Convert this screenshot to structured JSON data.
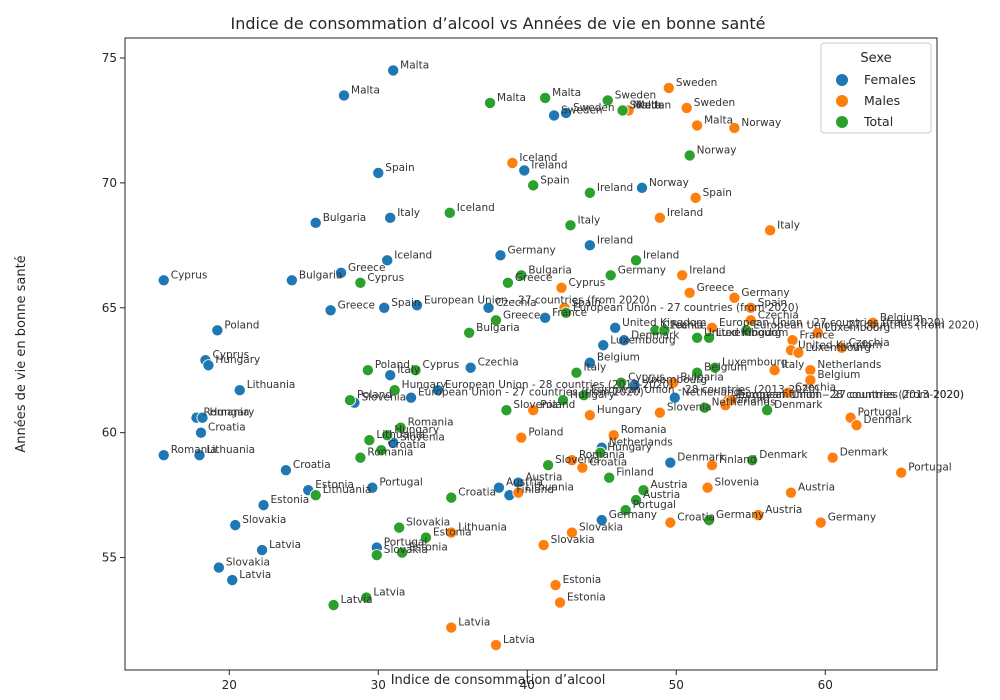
{
  "chart_data": {
    "type": "scatter",
    "title": "Indice de consommation d’alcool vs Années de vie en bonne santé",
    "xlabel": "Indice de consommation d’alcool",
    "ylabel": "Années de vie en bonne santé",
    "xlim": [
      13,
      67.5
    ],
    "ylim": [
      50.5,
      75.8
    ],
    "xticks": [
      20,
      30,
      40,
      50,
      60
    ],
    "yticks": [
      55,
      60,
      65,
      70,
      75
    ],
    "grid": false,
    "legend": {
      "title": "Sexe",
      "position": "top-right"
    },
    "series": [
      {
        "name": "Females",
        "color": "#1f77b4",
        "points": [
          {
            "x": 31.0,
            "y": 74.5,
            "label": "Malta"
          },
          {
            "x": 27.7,
            "y": 73.5,
            "label": "Malta"
          },
          {
            "x": 41.8,
            "y": 72.7,
            "label": "Sweden"
          },
          {
            "x": 42.6,
            "y": 72.8,
            "label": "Sweden"
          },
          {
            "x": 46.6,
            "y": 72.9,
            "label": "Malta"
          },
          {
            "x": 30.0,
            "y": 70.4,
            "label": "Spain"
          },
          {
            "x": 39.8,
            "y": 70.5,
            "label": "Ireland"
          },
          {
            "x": 47.7,
            "y": 69.8,
            "label": "Norway"
          },
          {
            "x": 25.8,
            "y": 68.4,
            "label": "Bulgaria"
          },
          {
            "x": 30.8,
            "y": 68.6,
            "label": "Italy"
          },
          {
            "x": 44.2,
            "y": 67.5,
            "label": "Ireland"
          },
          {
            "x": 38.2,
            "y": 67.1,
            "label": "Germany"
          },
          {
            "x": 30.6,
            "y": 66.9,
            "label": "Iceland"
          },
          {
            "x": 27.5,
            "y": 66.4,
            "label": "Greece"
          },
          {
            "x": 15.6,
            "y": 66.1,
            "label": "Cyprus"
          },
          {
            "x": 24.2,
            "y": 66.1,
            "label": "Bulgaria"
          },
          {
            "x": 26.8,
            "y": 64.9,
            "label": "Greece"
          },
          {
            "x": 30.4,
            "y": 65.0,
            "label": "Spain"
          },
          {
            "x": 32.6,
            "y": 65.1,
            "label": "European Union - 27 countries (from 2020)"
          },
          {
            "x": 37.4,
            "y": 65.0,
            "label": "Czechia"
          },
          {
            "x": 41.2,
            "y": 64.6,
            "label": "France"
          },
          {
            "x": 45.9,
            "y": 64.2,
            "label": "United Kingdom"
          },
          {
            "x": 19.2,
            "y": 64.1,
            "label": "Poland"
          },
          {
            "x": 45.1,
            "y": 63.5,
            "label": "Luxembourg"
          },
          {
            "x": 46.5,
            "y": 63.7,
            "label": "Denmark"
          },
          {
            "x": 18.4,
            "y": 62.9,
            "label": "Cyprus"
          },
          {
            "x": 18.6,
            "y": 62.7,
            "label": "Hungary"
          },
          {
            "x": 44.2,
            "y": 62.8,
            "label": "Belgium"
          },
          {
            "x": 36.2,
            "y": 62.6,
            "label": "Czechia"
          },
          {
            "x": 30.8,
            "y": 62.3,
            "label": "Italy"
          },
          {
            "x": 47.2,
            "y": 61.9,
            "label": "Luxembourg"
          },
          {
            "x": 20.7,
            "y": 61.7,
            "label": "Lithuania"
          },
          {
            "x": 34.0,
            "y": 61.7,
            "label": "European Union - 28 countries (2013-2020)"
          },
          {
            "x": 32.2,
            "y": 61.4,
            "label": "European Union - 27 countries (from 2020)"
          },
          {
            "x": 49.9,
            "y": 61.4,
            "label": "Netherlands"
          },
          {
            "x": 28.4,
            "y": 61.2,
            "label": "Slovenia"
          },
          {
            "x": 17.8,
            "y": 60.6,
            "label": "Romania"
          },
          {
            "x": 18.2,
            "y": 60.6,
            "label": "Hungary"
          },
          {
            "x": 18.1,
            "y": 60.0,
            "label": "Croatia"
          },
          {
            "x": 31.0,
            "y": 59.6,
            "label": "Slovenia"
          },
          {
            "x": 15.6,
            "y": 59.1,
            "label": "Romania"
          },
          {
            "x": 18.0,
            "y": 59.1,
            "label": "Lithuania"
          },
          {
            "x": 45.0,
            "y": 59.4,
            "label": "Netherlands"
          },
          {
            "x": 49.6,
            "y": 58.8,
            "label": "Denmark"
          },
          {
            "x": 23.8,
            "y": 58.5,
            "label": "Croatia"
          },
          {
            "x": 39.4,
            "y": 58.0,
            "label": "Austria"
          },
          {
            "x": 29.6,
            "y": 57.8,
            "label": "Portugal"
          },
          {
            "x": 38.1,
            "y": 57.8,
            "label": "Austria"
          },
          {
            "x": 38.8,
            "y": 57.5,
            "label": "Finland"
          },
          {
            "x": 25.3,
            "y": 57.7,
            "label": "Estonia"
          },
          {
            "x": 22.3,
            "y": 57.1,
            "label": "Estonia"
          },
          {
            "x": 45.0,
            "y": 56.5,
            "label": "Germany"
          },
          {
            "x": 20.4,
            "y": 56.3,
            "label": "Slovakia"
          },
          {
            "x": 29.9,
            "y": 55.4,
            "label": "Portugal"
          },
          {
            "x": 22.2,
            "y": 55.3,
            "label": "Latvia"
          },
          {
            "x": 19.3,
            "y": 54.6,
            "label": "Slovakia"
          },
          {
            "x": 20.2,
            "y": 54.1,
            "label": "Latvia"
          }
        ]
      },
      {
        "name": "Males",
        "color": "#ff7f0e",
        "points": [
          {
            "x": 49.5,
            "y": 73.8,
            "label": "Sweden"
          },
          {
            "x": 50.7,
            "y": 73.0,
            "label": "Sweden"
          },
          {
            "x": 46.8,
            "y": 72.9,
            "label": "Malta"
          },
          {
            "x": 51.4,
            "y": 72.3,
            "label": "Malta"
          },
          {
            "x": 53.9,
            "y": 72.2,
            "label": "Norway"
          },
          {
            "x": 39.0,
            "y": 70.8,
            "label": "Iceland"
          },
          {
            "x": 51.3,
            "y": 69.4,
            "label": "Spain"
          },
          {
            "x": 48.9,
            "y": 68.6,
            "label": "Ireland"
          },
          {
            "x": 56.3,
            "y": 68.1,
            "label": "Italy"
          },
          {
            "x": 50.4,
            "y": 66.3,
            "label": "Ireland"
          },
          {
            "x": 42.3,
            "y": 65.8,
            "label": "Cyprus"
          },
          {
            "x": 50.9,
            "y": 65.6,
            "label": "Greece"
          },
          {
            "x": 53.9,
            "y": 65.4,
            "label": "Germany"
          },
          {
            "x": 55.0,
            "y": 65.0,
            "label": "Spain"
          },
          {
            "x": 42.5,
            "y": 65.0,
            "label": "Spain"
          },
          {
            "x": 55.0,
            "y": 64.5,
            "label": "Czechia"
          },
          {
            "x": 52.4,
            "y": 64.2,
            "label": "European Union - 27 countries (from 2020)"
          },
          {
            "x": 63.2,
            "y": 64.4,
            "label": "Belgium"
          },
          {
            "x": 59.5,
            "y": 64.0,
            "label": "Luxembourg"
          },
          {
            "x": 57.8,
            "y": 63.7,
            "label": "France"
          },
          {
            "x": 57.7,
            "y": 63.3,
            "label": "United Kingdom"
          },
          {
            "x": 58.2,
            "y": 63.2,
            "label": "Luxembourg"
          },
          {
            "x": 61.1,
            "y": 63.4,
            "label": "Czechia"
          },
          {
            "x": 56.6,
            "y": 62.5,
            "label": "Italy"
          },
          {
            "x": 59.0,
            "y": 62.5,
            "label": "Netherlands"
          },
          {
            "x": 59.0,
            "y": 62.1,
            "label": "Belgium"
          },
          {
            "x": 49.8,
            "y": 62.0,
            "label": "Bulgaria"
          },
          {
            "x": 57.5,
            "y": 61.6,
            "label": "Czechia"
          },
          {
            "x": 53.5,
            "y": 61.3,
            "label": "European Union - 28 countries (2013-2020)"
          },
          {
            "x": 53.3,
            "y": 61.1,
            "label": "Finland"
          },
          {
            "x": 53.7,
            "y": 61.3,
            "label": "European Union - 27 countries (from 2020)"
          },
          {
            "x": 48.9,
            "y": 60.8,
            "label": "Slovenia"
          },
          {
            "x": 61.7,
            "y": 60.6,
            "label": "Portugal"
          },
          {
            "x": 62.1,
            "y": 60.3,
            "label": "Denmark"
          },
          {
            "x": 40.4,
            "y": 60.9,
            "label": "Poland"
          },
          {
            "x": 44.2,
            "y": 60.7,
            "label": "Hungary"
          },
          {
            "x": 39.6,
            "y": 59.8,
            "label": "Poland"
          },
          {
            "x": 45.8,
            "y": 59.9,
            "label": "Romania"
          },
          {
            "x": 43.0,
            "y": 58.9,
            "label": "Romania"
          },
          {
            "x": 43.7,
            "y": 58.6,
            "label": "Croatia"
          },
          {
            "x": 60.5,
            "y": 59.0,
            "label": "Denmark"
          },
          {
            "x": 52.4,
            "y": 58.7,
            "label": "Finland"
          },
          {
            "x": 65.1,
            "y": 58.4,
            "label": "Portugal"
          },
          {
            "x": 52.1,
            "y": 57.8,
            "label": "Slovenia"
          },
          {
            "x": 57.7,
            "y": 57.6,
            "label": "Austria"
          },
          {
            "x": 39.4,
            "y": 57.6,
            "label": "Lithuania"
          },
          {
            "x": 55.5,
            "y": 56.7,
            "label": "Austria"
          },
          {
            "x": 49.6,
            "y": 56.4,
            "label": "Croatia"
          },
          {
            "x": 59.7,
            "y": 56.4,
            "label": "Germany"
          },
          {
            "x": 34.9,
            "y": 56.0,
            "label": "Lithuania"
          },
          {
            "x": 43.0,
            "y": 56.0,
            "label": "Slovakia"
          },
          {
            "x": 41.1,
            "y": 55.5,
            "label": "Slovakia"
          },
          {
            "x": 41.9,
            "y": 53.9,
            "label": "Estonia"
          },
          {
            "x": 42.2,
            "y": 53.2,
            "label": "Estonia"
          },
          {
            "x": 34.9,
            "y": 52.2,
            "label": "Latvia"
          },
          {
            "x": 37.9,
            "y": 51.5,
            "label": "Latvia"
          }
        ]
      },
      {
        "name": "Total",
        "color": "#2ca02c",
        "points": [
          {
            "x": 41.2,
            "y": 73.4,
            "label": "Malta"
          },
          {
            "x": 37.5,
            "y": 73.2,
            "label": "Malta"
          },
          {
            "x": 45.4,
            "y": 73.3,
            "label": "Sweden"
          },
          {
            "x": 46.4,
            "y": 72.9,
            "label": "Sweden"
          },
          {
            "x": 50.9,
            "y": 71.1,
            "label": "Norway"
          },
          {
            "x": 40.4,
            "y": 69.9,
            "label": "Spain"
          },
          {
            "x": 44.2,
            "y": 69.6,
            "label": "Ireland"
          },
          {
            "x": 34.8,
            "y": 68.8,
            "label": "Iceland"
          },
          {
            "x": 42.9,
            "y": 68.3,
            "label": "Italy"
          },
          {
            "x": 47.3,
            "y": 66.9,
            "label": "Ireland"
          },
          {
            "x": 45.6,
            "y": 66.3,
            "label": "Germany"
          },
          {
            "x": 39.6,
            "y": 66.3,
            "label": "Bulgaria"
          },
          {
            "x": 38.7,
            "y": 66.0,
            "label": "Greece"
          },
          {
            "x": 28.8,
            "y": 66.0,
            "label": "Cyprus"
          },
          {
            "x": 42.6,
            "y": 64.8,
            "label": "European Union - 27 countries (from 2020)"
          },
          {
            "x": 37.9,
            "y": 64.5,
            "label": "Greece"
          },
          {
            "x": 36.1,
            "y": 64.0,
            "label": "Bulgaria"
          },
          {
            "x": 48.6,
            "y": 64.1,
            "label": "Czechia"
          },
          {
            "x": 49.2,
            "y": 64.1,
            "label": "France"
          },
          {
            "x": 51.4,
            "y": 63.8,
            "label": "United Kingdom"
          },
          {
            "x": 52.2,
            "y": 63.8,
            "label": "Luxembourg"
          },
          {
            "x": 54.7,
            "y": 64.1,
            "label": "European Union - 27 countries (from 2020)"
          },
          {
            "x": 29.3,
            "y": 62.5,
            "label": "Poland"
          },
          {
            "x": 32.5,
            "y": 62.5,
            "label": "Cyprus"
          },
          {
            "x": 43.3,
            "y": 62.4,
            "label": "Italy"
          },
          {
            "x": 51.4,
            "y": 62.4,
            "label": "Belgium"
          },
          {
            "x": 52.6,
            "y": 62.6,
            "label": "Luxembourg"
          },
          {
            "x": 46.3,
            "y": 62.0,
            "label": "Cyprus"
          },
          {
            "x": 31.1,
            "y": 61.7,
            "label": "Hungary"
          },
          {
            "x": 43.8,
            "y": 61.5,
            "label": "European Union - 28 countries (2013-2020)"
          },
          {
            "x": 42.4,
            "y": 61.3,
            "label": "Hungary"
          },
          {
            "x": 51.9,
            "y": 61.0,
            "label": "Netherlands"
          },
          {
            "x": 56.1,
            "y": 60.9,
            "label": "Denmark"
          },
          {
            "x": 28.1,
            "y": 61.3,
            "label": "Poland"
          },
          {
            "x": 38.6,
            "y": 60.9,
            "label": "Slovenia"
          },
          {
            "x": 31.5,
            "y": 60.2,
            "label": "Romania"
          },
          {
            "x": 30.6,
            "y": 59.9,
            "label": "Hungary"
          },
          {
            "x": 29.4,
            "y": 59.7,
            "label": "Lithuania"
          },
          {
            "x": 30.2,
            "y": 59.3,
            "label": "Croatia"
          },
          {
            "x": 28.8,
            "y": 59.0,
            "label": "Romania"
          },
          {
            "x": 44.9,
            "y": 59.2,
            "label": "Hungary"
          },
          {
            "x": 55.1,
            "y": 58.9,
            "label": "Denmark"
          },
          {
            "x": 41.4,
            "y": 58.7,
            "label": "Slovenia"
          },
          {
            "x": 45.5,
            "y": 58.2,
            "label": "Finland"
          },
          {
            "x": 47.8,
            "y": 57.7,
            "label": "Austria"
          },
          {
            "x": 25.8,
            "y": 57.5,
            "label": "Lithuania"
          },
          {
            "x": 34.9,
            "y": 57.4,
            "label": "Croatia"
          },
          {
            "x": 47.3,
            "y": 57.3,
            "label": "Austria"
          },
          {
            "x": 46.6,
            "y": 56.9,
            "label": "Portugal"
          },
          {
            "x": 52.2,
            "y": 56.5,
            "label": "Germany"
          },
          {
            "x": 31.4,
            "y": 56.2,
            "label": "Slovakia"
          },
          {
            "x": 33.2,
            "y": 55.8,
            "label": "Estonia"
          },
          {
            "x": 31.6,
            "y": 55.2,
            "label": "Estonia"
          },
          {
            "x": 29.9,
            "y": 55.1,
            "label": "Slovakia"
          },
          {
            "x": 29.2,
            "y": 53.4,
            "label": "Latvia"
          },
          {
            "x": 27.0,
            "y": 53.1,
            "label": "Latvia"
          }
        ]
      }
    ]
  }
}
